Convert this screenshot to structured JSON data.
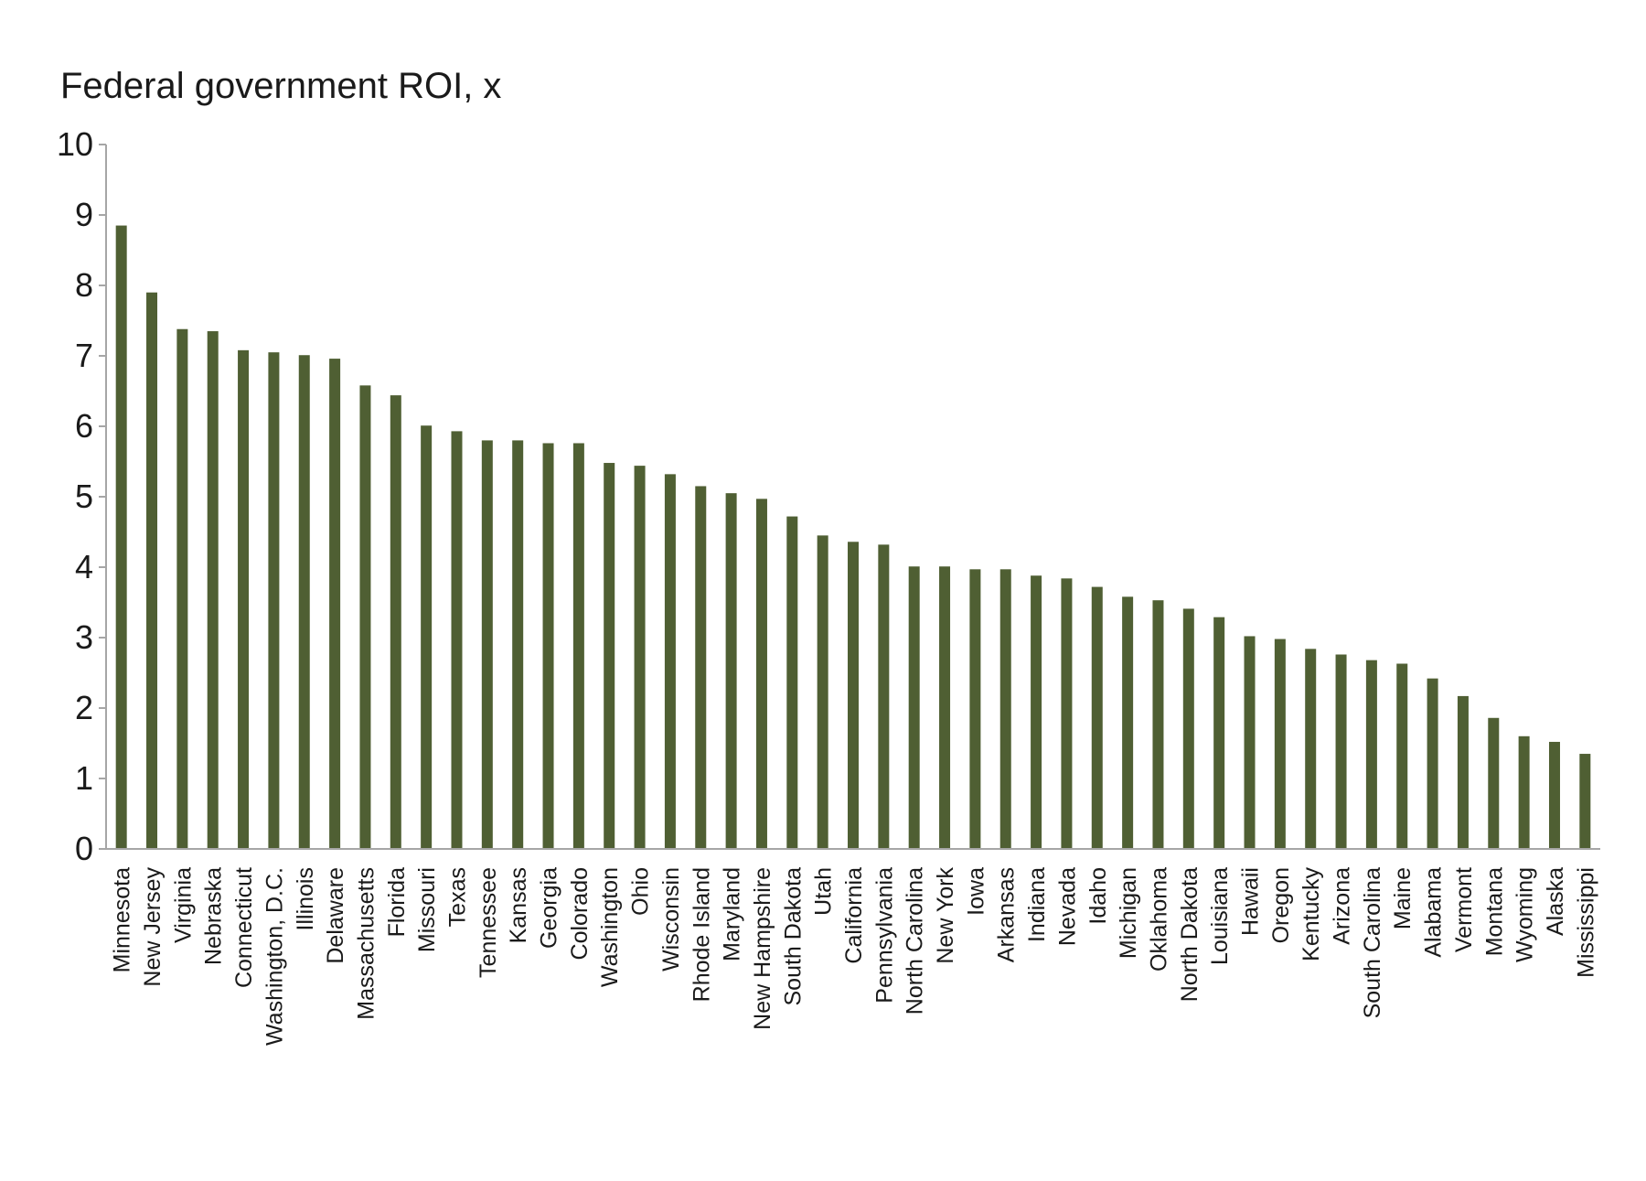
{
  "chart_data": {
    "type": "bar",
    "title": "Federal government ROI, x",
    "xlabel": "",
    "ylabel": "",
    "ylim": [
      0,
      10
    ],
    "yticks": [
      "0",
      "1",
      "2",
      "3",
      "4",
      "5",
      "6",
      "7",
      "8",
      "9",
      "10"
    ],
    "grid": false,
    "legend": "none",
    "bar_color": "#4f5f33",
    "axis_color": "#a6a6a6",
    "categories": [
      "Minnesota",
      "New Jersey",
      "Virginia",
      "Nebraska",
      "Connecticut",
      "Washington, D.C.",
      "Illinois",
      "Delaware",
      "Massachusetts",
      "Florida",
      "Missouri",
      "Texas",
      "Tennessee",
      "Kansas",
      "Georgia",
      "Colorado",
      "Washington",
      "Ohio",
      "Wisconsin",
      "Rhode Island",
      "Maryland",
      "New Hampshire",
      "South Dakota",
      "Utah",
      "California",
      "Pennsylvania",
      "North Carolina",
      "New York",
      "Iowa",
      "Arkansas",
      "Indiana",
      "Nevada",
      "Idaho",
      "Michigan",
      "Oklahoma",
      "North Dakota",
      "Louisiana",
      "Hawaii",
      "Oregon",
      "Kentucky",
      "Arizona",
      "South Carolina",
      "Maine",
      "Alabama",
      "Vermont",
      "Montana",
      "Wyoming",
      "Alaska",
      "Mississippi"
    ],
    "values": [
      8.85,
      7.9,
      7.38,
      7.35,
      7.08,
      7.05,
      7.01,
      6.96,
      6.58,
      6.44,
      6.01,
      5.93,
      5.8,
      5.8,
      5.76,
      5.76,
      5.48,
      5.44,
      5.32,
      5.15,
      5.05,
      4.97,
      4.72,
      4.45,
      4.36,
      4.32,
      4.01,
      4.01,
      3.97,
      3.97,
      3.88,
      3.84,
      3.72,
      3.58,
      3.53,
      3.41,
      3.29,
      3.02,
      2.98,
      2.84,
      2.76,
      2.68,
      2.63,
      2.42,
      2.17,
      1.86,
      1.6,
      1.52,
      1.35
    ]
  }
}
